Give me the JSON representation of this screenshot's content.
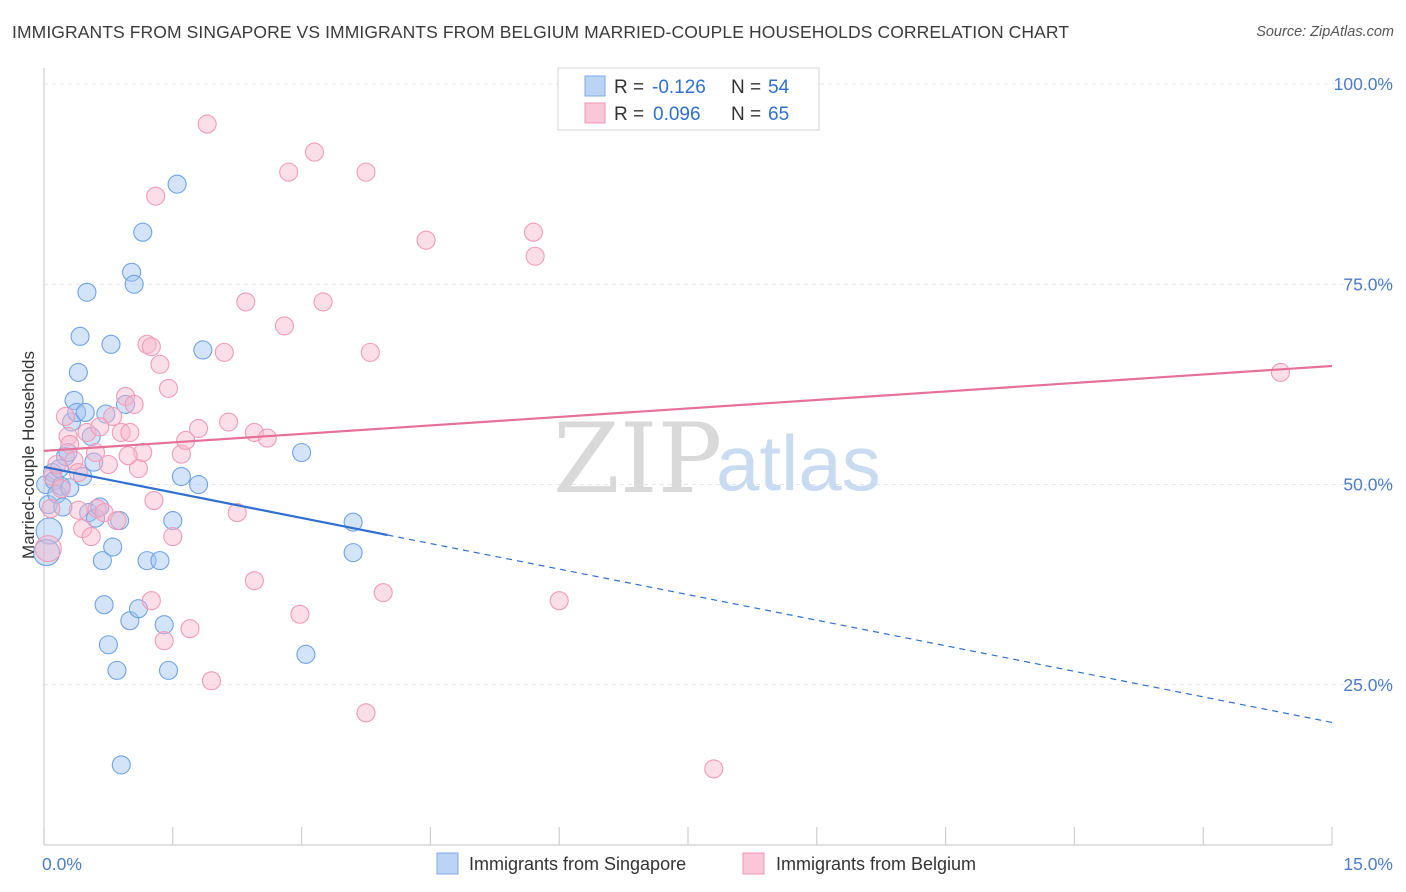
{
  "header": {
    "title": "IMMIGRANTS FROM SINGAPORE VS IMMIGRANTS FROM BELGIUM MARRIED-COUPLE HOUSEHOLDS CORRELATION CHART",
    "source": "Source: ZipAtlas.com"
  },
  "watermark": {
    "zip": "ZIP",
    "atlas": "atlas"
  },
  "legend": {
    "r_label": "R =",
    "n_label": "N =",
    "singapore": {
      "r": "-0.126",
      "n": "54"
    },
    "belgium": {
      "r": "0.096",
      "n": "65"
    }
  },
  "bottom_legend": {
    "singapore": "Immigrants from Singapore",
    "belgium": "Immigrants from Belgium"
  },
  "chart_data": {
    "type": "scatter",
    "title": "IMMIGRANTS FROM SINGAPORE VS IMMIGRANTS FROM BELGIUM MARRIED-COUPLE HOUSEHOLDS CORRELATION CHART",
    "xlabel": "",
    "ylabel": "Married-couple Households",
    "xlim": [
      0,
      15
    ],
    "ylim": [
      5,
      102
    ],
    "x_tick_labels": [
      {
        "v": 0,
        "label": "0.0%"
      },
      {
        "v": 15,
        "label": "15.0%"
      }
    ],
    "y_tick_labels": [
      {
        "v": 100,
        "label": "100.0%"
      },
      {
        "v": 75,
        "label": "75.0%"
      },
      {
        "v": 50,
        "label": "50.0%"
      },
      {
        "v": 25,
        "label": "25.0%"
      }
    ],
    "colors": {
      "singapore": "#6fa3e6",
      "belgium": "#f29bb8",
      "singapore_line": "#2e6fd0",
      "belgium_line": "#e5709a"
    },
    "series": [
      {
        "name": "Immigrants from Singapore",
        "r": -0.126,
        "n": 54,
        "trend": {
          "x0": 0,
          "y0": 52.2,
          "x1": 4.0,
          "y1": 43.7,
          "dash_x1": 15,
          "dash_y1": 20.3
        },
        "points": [
          [
            0.02,
            50.0
          ],
          [
            0.05,
            47.5
          ],
          [
            0.06,
            44.2
          ],
          [
            0.1,
            51.5
          ],
          [
            0.12,
            50.5
          ],
          [
            0.15,
            48.8
          ],
          [
            0.18,
            52.0
          ],
          [
            0.2,
            49.8
          ],
          [
            0.22,
            47.2
          ],
          [
            0.25,
            53.5
          ],
          [
            0.28,
            54.0
          ],
          [
            0.3,
            49.6
          ],
          [
            0.32,
            57.8
          ],
          [
            0.35,
            60.5
          ],
          [
            0.38,
            59.0
          ],
          [
            0.4,
            64.0
          ],
          [
            0.42,
            68.5
          ],
          [
            0.45,
            51.0
          ],
          [
            0.48,
            59.0
          ],
          [
            0.5,
            74.0
          ],
          [
            0.52,
            46.5
          ],
          [
            0.55,
            56.0
          ],
          [
            0.58,
            52.8
          ],
          [
            0.6,
            45.8
          ],
          [
            0.65,
            47.2
          ],
          [
            0.68,
            40.5
          ],
          [
            0.7,
            35.0
          ],
          [
            0.72,
            58.8
          ],
          [
            0.75,
            30.0
          ],
          [
            0.78,
            67.5
          ],
          [
            0.8,
            42.2
          ],
          [
            0.85,
            26.8
          ],
          [
            0.88,
            45.5
          ],
          [
            0.9,
            15.0
          ],
          [
            0.95,
            60.0
          ],
          [
            1.0,
            33.0
          ],
          [
            1.02,
            76.5
          ],
          [
            1.05,
            75.0
          ],
          [
            1.1,
            34.5
          ],
          [
            1.15,
            81.5
          ],
          [
            1.2,
            40.5
          ],
          [
            1.35,
            40.5
          ],
          [
            1.4,
            32.5
          ],
          [
            1.45,
            26.8
          ],
          [
            1.5,
            45.5
          ],
          [
            1.55,
            87.5
          ],
          [
            1.6,
            51.0
          ],
          [
            1.85,
            66.8
          ],
          [
            1.8,
            50.0
          ],
          [
            3.0,
            54.0
          ],
          [
            3.05,
            28.8
          ],
          [
            3.6,
            45.3
          ],
          [
            3.6,
            41.5
          ],
          [
            0.03,
            41.5
          ]
        ]
      },
      {
        "name": "Immigrants from Belgium",
        "r": 0.096,
        "n": 65,
        "trend": {
          "x0": 0,
          "y0": 54.2,
          "x1": 15,
          "y1": 64.8
        },
        "points": [
          [
            0.05,
            42.0
          ],
          [
            0.08,
            47.0
          ],
          [
            0.1,
            51.0
          ],
          [
            0.15,
            52.5
          ],
          [
            0.2,
            49.5
          ],
          [
            0.25,
            58.5
          ],
          [
            0.28,
            56.0
          ],
          [
            0.3,
            55.0
          ],
          [
            0.35,
            53.0
          ],
          [
            0.4,
            51.5
          ],
          [
            0.45,
            44.5
          ],
          [
            0.5,
            56.5
          ],
          [
            0.55,
            43.5
          ],
          [
            0.6,
            54.0
          ],
          [
            0.62,
            47.0
          ],
          [
            0.7,
            46.5
          ],
          [
            0.75,
            52.5
          ],
          [
            0.8,
            58.5
          ],
          [
            0.85,
            45.5
          ],
          [
            0.9,
            56.5
          ],
          [
            0.95,
            61.0
          ],
          [
            1.0,
            56.5
          ],
          [
            1.05,
            60.0
          ],
          [
            1.1,
            52.0
          ],
          [
            1.15,
            54.0
          ],
          [
            1.2,
            67.5
          ],
          [
            1.25,
            35.5
          ],
          [
            1.28,
            48.0
          ],
          [
            1.3,
            86.0
          ],
          [
            1.35,
            65.0
          ],
          [
            1.4,
            30.5
          ],
          [
            1.45,
            62.0
          ],
          [
            1.5,
            43.5
          ],
          [
            1.6,
            53.8
          ],
          [
            1.65,
            55.5
          ],
          [
            1.7,
            32.0
          ],
          [
            1.8,
            57.0
          ],
          [
            1.9,
            95.0
          ],
          [
            1.95,
            25.5
          ],
          [
            2.1,
            66.5
          ],
          [
            2.15,
            57.8
          ],
          [
            2.25,
            46.5
          ],
          [
            2.35,
            72.8
          ],
          [
            2.45,
            56.5
          ],
          [
            2.45,
            38.0
          ],
          [
            2.6,
            55.8
          ],
          [
            2.8,
            69.8
          ],
          [
            2.85,
            89.0
          ],
          [
            2.98,
            33.8
          ],
          [
            3.15,
            91.5
          ],
          [
            3.25,
            72.8
          ],
          [
            3.75,
            89.0
          ],
          [
            3.8,
            66.5
          ],
          [
            3.95,
            36.5
          ],
          [
            3.75,
            21.5
          ],
          [
            4.45,
            80.5
          ],
          [
            5.7,
            81.5
          ],
          [
            5.72,
            78.5
          ],
          [
            6.0,
            35.5
          ],
          [
            7.8,
            14.5
          ],
          [
            14.4,
            64.0
          ],
          [
            1.25,
            67.2
          ],
          [
            0.4,
            46.8
          ],
          [
            0.65,
            57.2
          ],
          [
            0.98,
            53.6
          ]
        ]
      }
    ]
  }
}
